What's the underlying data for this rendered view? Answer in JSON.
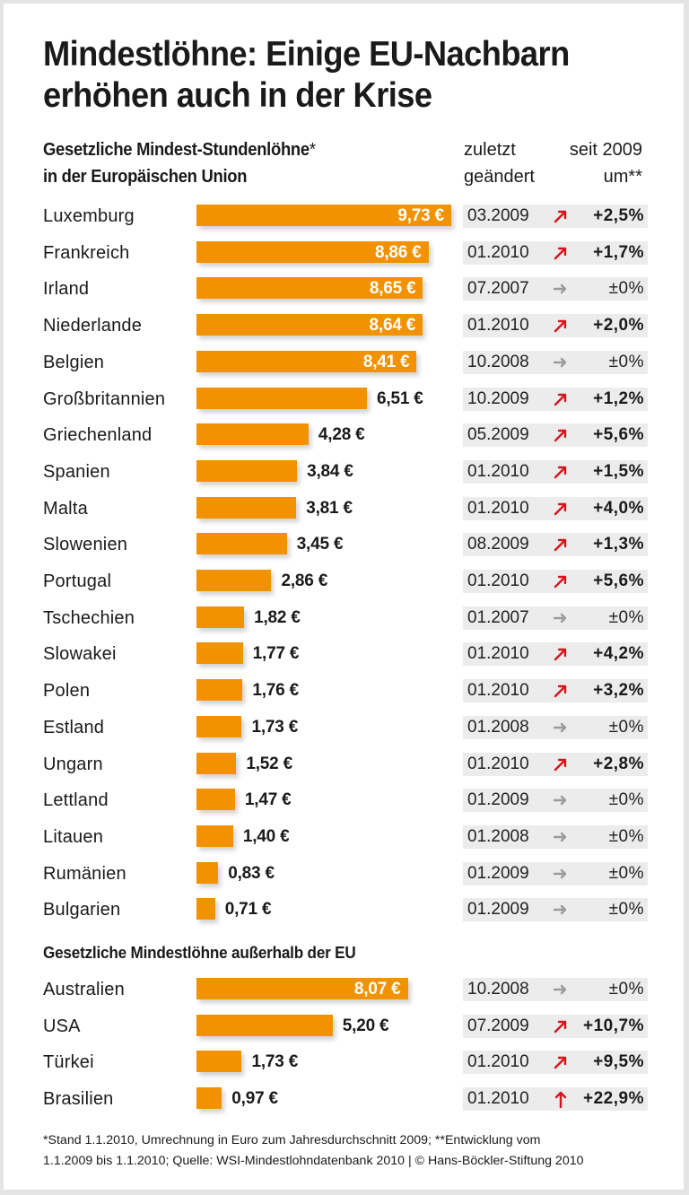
{
  "title_line1": "Mindestlöhne: Einige EU-Nachbarn",
  "title_line2": "erhöhen auch in der Krise",
  "subtitle_line1": "Gesetzliche Mindest-Stundenlöhne",
  "subtitle_star": "*",
  "subtitle_line2": "in der Europäischen Union",
  "col_date_line1": "zuletzt",
  "col_date_line2": "geändert",
  "col_change_line1": "seit 2009",
  "col_change_line2": "um**",
  "section2_title": "Gesetzliche Mindestlöhne außerhalb der EU",
  "footnote_line1": "*Stand 1.1.2010, Umrechnung in Euro zum Jahresdurchschnitt 2009; **Entwicklung vom",
  "footnote_line2": "1.1.2009 bis 1.1.2010; Quelle: WSI-Mindestlohndatenbank 2010 | © Hans-Böckler-Stiftung 2010",
  "colors": {
    "bar": "#f39200",
    "arrow_up": "#d7141a",
    "arrow_flat": "#9a9a9a",
    "cell_bg": "#ececec"
  },
  "chart_data": {
    "type": "bar",
    "orientation": "horizontal",
    "title": "Mindestlöhne: Einige EU-Nachbarn erhöhen auch in der Krise",
    "unit": "€ pro Stunde",
    "groups": [
      {
        "name": "Gesetzliche Mindest-Stundenlöhne in der Europäischen Union",
        "rows": [
          {
            "country": "Luxemburg",
            "value": 9.73,
            "label": "9,73 €",
            "changed": "03.2009",
            "trend": "up",
            "change": "+2,5%"
          },
          {
            "country": "Frankreich",
            "value": 8.86,
            "label": "8,86 €",
            "changed": "01.2010",
            "trend": "up",
            "change": "+1,7%"
          },
          {
            "country": "Irland",
            "value": 8.65,
            "label": "8,65 €",
            "changed": "07.2007",
            "trend": "flat",
            "change": "±0%"
          },
          {
            "country": "Niederlande",
            "value": 8.64,
            "label": "8,64 €",
            "changed": "01.2010",
            "trend": "up",
            "change": "+2,0%"
          },
          {
            "country": "Belgien",
            "value": 8.41,
            "label": "8,41 €",
            "changed": "10.2008",
            "trend": "flat",
            "change": "±0%"
          },
          {
            "country": "Großbritannien",
            "value": 6.51,
            "label": "6,51 €",
            "changed": "10.2009",
            "trend": "up",
            "change": "+1,2%"
          },
          {
            "country": "Griechenland",
            "value": 4.28,
            "label": "4,28 €",
            "changed": "05.2009",
            "trend": "up",
            "change": "+5,6%"
          },
          {
            "country": "Spanien",
            "value": 3.84,
            "label": "3,84 €",
            "changed": "01.2010",
            "trend": "up",
            "change": "+1,5%"
          },
          {
            "country": "Malta",
            "value": 3.81,
            "label": "3,81 €",
            "changed": "01.2010",
            "trend": "up",
            "change": "+4,0%"
          },
          {
            "country": "Slowenien",
            "value": 3.45,
            "label": "3,45 €",
            "changed": "08.2009",
            "trend": "up",
            "change": "+1,3%"
          },
          {
            "country": "Portugal",
            "value": 2.86,
            "label": "2,86 €",
            "changed": "01.2010",
            "trend": "up",
            "change": "+5,6%"
          },
          {
            "country": "Tschechien",
            "value": 1.82,
            "label": "1,82 €",
            "changed": "01.2007",
            "trend": "flat",
            "change": "±0%"
          },
          {
            "country": "Slowakei",
            "value": 1.77,
            "label": "1,77 €",
            "changed": "01.2010",
            "trend": "up",
            "change": "+4,2%"
          },
          {
            "country": "Polen",
            "value": 1.76,
            "label": "1,76 €",
            "changed": "01.2010",
            "trend": "up",
            "change": "+3,2%"
          },
          {
            "country": "Estland",
            "value": 1.73,
            "label": "1,73 €",
            "changed": "01.2008",
            "trend": "flat",
            "change": "±0%"
          },
          {
            "country": "Ungarn",
            "value": 1.52,
            "label": "1,52 €",
            "changed": "01.2010",
            "trend": "up",
            "change": "+2,8%"
          },
          {
            "country": "Lettland",
            "value": 1.47,
            "label": "1,47 €",
            "changed": "01.2009",
            "trend": "flat",
            "change": "±0%"
          },
          {
            "country": "Litauen",
            "value": 1.4,
            "label": "1,40 €",
            "changed": "01.2008",
            "trend": "flat",
            "change": "±0%"
          },
          {
            "country": "Rumänien",
            "value": 0.83,
            "label": "0,83 €",
            "changed": "01.2009",
            "trend": "flat",
            "change": "±0%"
          },
          {
            "country": "Bulgarien",
            "value": 0.71,
            "label": "0,71 €",
            "changed": "01.2009",
            "trend": "flat",
            "change": "±0%"
          }
        ]
      },
      {
        "name": "Gesetzliche Mindestlöhne außerhalb der EU",
        "rows": [
          {
            "country": "Australien",
            "value": 8.07,
            "label": "8,07 €",
            "changed": "10.2008",
            "trend": "flat",
            "change": "±0%"
          },
          {
            "country": "USA",
            "value": 5.2,
            "label": "5,20 €",
            "changed": "07.2009",
            "trend": "up",
            "change": "+10,7%"
          },
          {
            "country": "Türkei",
            "value": 1.73,
            "label": "1,73 €",
            "changed": "01.2010",
            "trend": "up",
            "change": "+9,5%"
          },
          {
            "country": "Brasilien",
            "value": 0.97,
            "label": "0,97 €",
            "changed": "01.2010",
            "trend": "strong-up",
            "change": "+22,9%"
          }
        ]
      }
    ],
    "xlim": [
      0,
      9.73
    ],
    "labels_inside_threshold": 7.0,
    "grid": false,
    "legend": "none"
  }
}
